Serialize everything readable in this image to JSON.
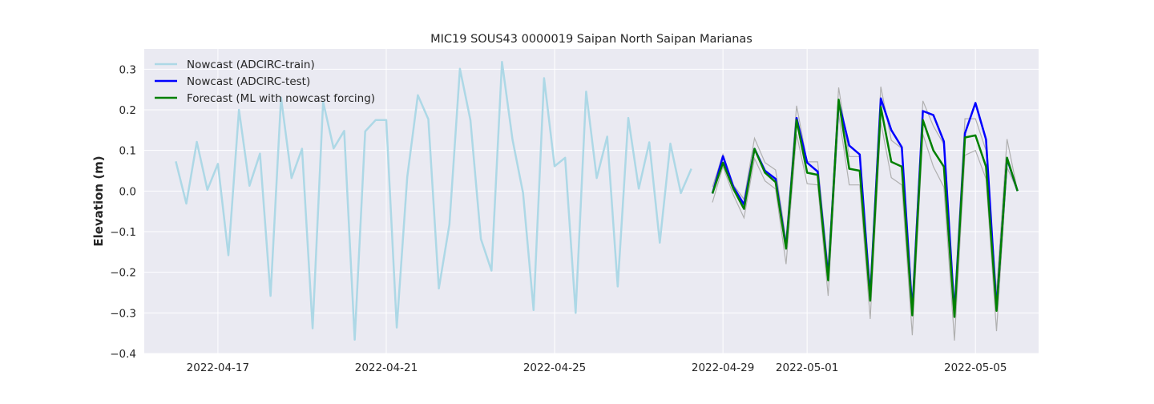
{
  "chart_data": {
    "type": "line",
    "title": "MIC19 SOUS43 0000019 Saipan North Saipan Marianas",
    "xlabel": "",
    "ylabel": "Elevation (m)",
    "xlim": [
      "2022-04-15T06:00",
      "2022-05-06T12:00"
    ],
    "ylim": [
      -0.4,
      0.35
    ],
    "yticks": [
      -0.4,
      -0.3,
      -0.2,
      -0.1,
      0.0,
      0.1,
      0.2,
      0.3
    ],
    "ytick_labels": [
      "−0.4",
      "−0.3",
      "−0.2",
      "−0.1",
      "0.0",
      "0.1",
      "0.2",
      "0.3"
    ],
    "xticks": [
      "2022-04-17",
      "2022-04-21",
      "2022-04-25",
      "2022-04-29",
      "2022-05-01",
      "2022-05-05"
    ],
    "xtick_labels": [
      "2022-04-17",
      "2022-04-21",
      "2022-04-25",
      "2022-04-29",
      "2022-05-01",
      "2022-05-05"
    ],
    "grid": true,
    "legend_position": "upper-left",
    "colors": {
      "background": "#eaeaf2",
      "grid": "#ffffff",
      "train": "#add8e6",
      "test": "#0000ff",
      "forecast": "#008000",
      "members": "#b0b0b0"
    },
    "series": [
      {
        "name": "Nowcast (ADCIRC-train)",
        "x": [
          "2022-04-16T00:00",
          "2022-04-16T06:00",
          "2022-04-16T12:00",
          "2022-04-16T18:00",
          "2022-04-17T00:00",
          "2022-04-17T06:00",
          "2022-04-17T12:00",
          "2022-04-17T18:00",
          "2022-04-18T00:00",
          "2022-04-18T06:00",
          "2022-04-18T12:00",
          "2022-04-18T18:00",
          "2022-04-19T00:00",
          "2022-04-19T06:00",
          "2022-04-19T12:00",
          "2022-04-19T18:00",
          "2022-04-20T00:00",
          "2022-04-20T06:00",
          "2022-04-20T12:00",
          "2022-04-20T18:00",
          "2022-04-21T00:00",
          "2022-04-21T06:00",
          "2022-04-21T12:00",
          "2022-04-21T18:00",
          "2022-04-22T00:00",
          "2022-04-22T06:00",
          "2022-04-22T12:00",
          "2022-04-22T18:00",
          "2022-04-23T00:00",
          "2022-04-23T06:00",
          "2022-04-23T12:00",
          "2022-04-23T18:00",
          "2022-04-24T00:00",
          "2022-04-24T06:00",
          "2022-04-24T12:00",
          "2022-04-24T18:00",
          "2022-04-25T00:00",
          "2022-04-25T06:00",
          "2022-04-25T12:00",
          "2022-04-25T18:00",
          "2022-04-26T00:00",
          "2022-04-26T06:00",
          "2022-04-26T12:00",
          "2022-04-26T18:00",
          "2022-04-27T00:00",
          "2022-04-27T06:00",
          "2022-04-27T12:00",
          "2022-04-27T18:00",
          "2022-04-28T00:00",
          "2022-04-28T06:00"
        ],
        "y": [
          0.073,
          -0.031,
          0.121,
          0.003,
          0.067,
          -0.158,
          0.2,
          0.013,
          0.092,
          -0.258,
          0.23,
          0.032,
          0.104,
          -0.338,
          0.22,
          0.105,
          0.148,
          -0.366,
          0.147,
          0.175,
          0.175,
          -0.336,
          0.035,
          0.236,
          0.177,
          -0.24,
          -0.082,
          0.301,
          0.175,
          -0.118,
          -0.196,
          0.318,
          0.127,
          -0.005,
          -0.293,
          0.278,
          0.061,
          0.082,
          -0.3,
          0.245,
          0.032,
          0.134,
          -0.235,
          0.18,
          0.006,
          0.12,
          -0.127,
          0.117,
          -0.005,
          0.055
        ]
      },
      {
        "name": "Nowcast (ADCIRC-test)",
        "x": [
          "2022-04-28T18:00",
          "2022-04-29T00:00",
          "2022-04-29T06:00",
          "2022-04-29T12:00",
          "2022-04-29T18:00",
          "2022-04-30T00:00",
          "2022-04-30T06:00",
          "2022-04-30T12:00",
          "2022-04-30T18:00",
          "2022-05-01T00:00",
          "2022-05-01T06:00",
          "2022-05-01T12:00",
          "2022-05-01T18:00",
          "2022-05-02T00:00",
          "2022-05-02T06:00",
          "2022-05-02T12:00",
          "2022-05-02T18:00",
          "2022-05-03T00:00",
          "2022-05-03T06:00",
          "2022-05-03T12:00",
          "2022-05-03T18:00",
          "2022-05-04T00:00",
          "2022-05-04T06:00",
          "2022-05-04T12:00",
          "2022-05-04T18:00",
          "2022-05-05T00:00",
          "2022-05-05T06:00",
          "2022-05-05T12:00",
          "2022-05-05T18:00",
          "2022-05-06T00:00"
        ],
        "y": [
          -0.006,
          0.086,
          0.01,
          -0.033,
          0.104,
          0.05,
          0.03,
          -0.138,
          0.18,
          0.07,
          0.048,
          -0.21,
          0.22,
          0.112,
          0.09,
          -0.26,
          0.228,
          0.15,
          0.108,
          -0.296,
          0.197,
          0.187,
          0.122,
          -0.3,
          0.142,
          0.217,
          0.127,
          -0.29,
          0.08,
          0.0
        ]
      },
      {
        "name": "Forecast (ML with nowcast forcing)",
        "x": [
          "2022-04-28T18:00",
          "2022-04-29T00:00",
          "2022-04-29T06:00",
          "2022-04-29T12:00",
          "2022-04-29T18:00",
          "2022-04-30T00:00",
          "2022-04-30T06:00",
          "2022-04-30T12:00",
          "2022-04-30T18:00",
          "2022-05-01T00:00",
          "2022-05-01T06:00",
          "2022-05-01T12:00",
          "2022-05-01T18:00",
          "2022-05-02T00:00",
          "2022-05-02T06:00",
          "2022-05-02T12:00",
          "2022-05-02T18:00",
          "2022-05-03T00:00",
          "2022-05-03T06:00",
          "2022-05-03T12:00",
          "2022-05-03T18:00",
          "2022-05-04T00:00",
          "2022-05-04T06:00",
          "2022-05-04T12:00",
          "2022-05-04T18:00",
          "2022-05-05T00:00",
          "2022-05-05T06:00",
          "2022-05-05T12:00",
          "2022-05-05T18:00",
          "2022-05-06T00:00"
        ],
        "y": [
          -0.006,
          0.07,
          0.005,
          -0.044,
          0.104,
          0.045,
          0.022,
          -0.142,
          0.175,
          0.045,
          0.04,
          -0.22,
          0.225,
          0.055,
          0.05,
          -0.27,
          0.207,
          0.072,
          0.06,
          -0.306,
          0.175,
          0.1,
          0.06,
          -0.31,
          0.132,
          0.137,
          0.06,
          -0.295,
          0.082,
          0.0
        ]
      }
    ],
    "ensemble_members": [
      {
        "x": [
          "2022-04-28T18:00",
          "2022-04-29T00:00",
          "2022-04-29T06:00",
          "2022-04-29T12:00",
          "2022-04-29T18:00",
          "2022-04-30T00:00",
          "2022-04-30T06:00",
          "2022-04-30T12:00",
          "2022-04-30T18:00",
          "2022-05-01T00:00",
          "2022-05-01T06:00",
          "2022-05-01T12:00",
          "2022-05-01T18:00",
          "2022-05-02T00:00",
          "2022-05-02T06:00",
          "2022-05-02T12:00",
          "2022-05-02T18:00",
          "2022-05-03T00:00",
          "2022-05-03T06:00",
          "2022-05-03T12:00",
          "2022-05-03T18:00",
          "2022-05-04T00:00",
          "2022-05-04T06:00",
          "2022-05-04T12:00",
          "2022-05-04T18:00",
          "2022-05-05T00:00",
          "2022-05-05T06:00",
          "2022-05-05T12:00",
          "2022-05-05T18:00",
          "2022-05-06T00:00"
        ],
        "y": [
          0.01,
          0.09,
          0.015,
          -0.02,
          0.13,
          0.07,
          0.052,
          -0.12,
          0.21,
          0.072,
          0.072,
          -0.19,
          0.255,
          0.085,
          0.085,
          -0.24,
          0.257,
          0.125,
          0.105,
          -0.275,
          0.222,
          0.16,
          0.115,
          -0.28,
          0.178,
          0.178,
          0.1,
          -0.25,
          0.128,
          0.0
        ]
      },
      {
        "x": [
          "2022-04-28T18:00",
          "2022-04-29T00:00",
          "2022-04-29T06:00",
          "2022-04-29T12:00",
          "2022-04-29T18:00",
          "2022-04-30T00:00",
          "2022-04-30T06:00",
          "2022-04-30T12:00",
          "2022-04-30T18:00",
          "2022-05-01T00:00",
          "2022-05-01T06:00",
          "2022-05-01T12:00",
          "2022-05-01T18:00",
          "2022-05-02T00:00",
          "2022-05-02T06:00",
          "2022-05-02T12:00",
          "2022-05-02T18:00",
          "2022-05-03T00:00",
          "2022-05-03T06:00",
          "2022-05-03T12:00",
          "2022-05-03T18:00",
          "2022-05-04T00:00",
          "2022-05-04T06:00",
          "2022-05-04T12:00",
          "2022-05-04T18:00",
          "2022-05-05T00:00",
          "2022-05-05T06:00",
          "2022-05-05T12:00",
          "2022-05-05T18:00",
          "2022-05-06T00:00"
        ],
        "y": [
          -0.028,
          0.06,
          -0.01,
          -0.066,
          0.08,
          0.025,
          0.005,
          -0.18,
          0.14,
          0.018,
          0.015,
          -0.258,
          0.19,
          0.015,
          0.015,
          -0.315,
          0.17,
          0.033,
          0.015,
          -0.355,
          0.14,
          0.06,
          0.01,
          -0.368,
          0.088,
          0.1,
          0.03,
          -0.345,
          0.058,
          0.0
        ]
      }
    ]
  }
}
